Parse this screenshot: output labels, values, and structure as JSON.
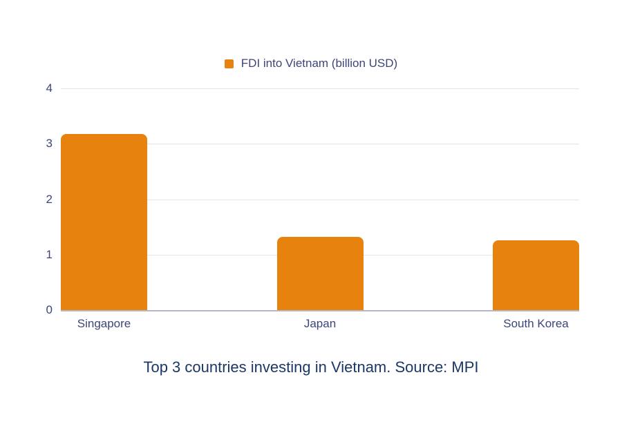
{
  "colors": {
    "background": "#FFFFFF",
    "bar": "#E8820E",
    "axis_text": "#3D4578",
    "caption_text": "#1B3764",
    "gridline": "#E2E2EC",
    "baseline": "#B6B6C9"
  },
  "chart_data": {
    "type": "bar",
    "series_name": "FDI into Vietnam (billion USD)",
    "categories": [
      "Singapore",
      "Japan",
      "South Korea"
    ],
    "values": [
      3.18,
      1.32,
      1.26
    ],
    "title": "Top 3 countries investing in Vietnam. Source: MPI",
    "xlabel": "",
    "ylabel": "",
    "ylim": [
      0,
      4
    ],
    "yticks": [
      0,
      1,
      2,
      3,
      4
    ],
    "grid": true,
    "legend_position": "top"
  }
}
